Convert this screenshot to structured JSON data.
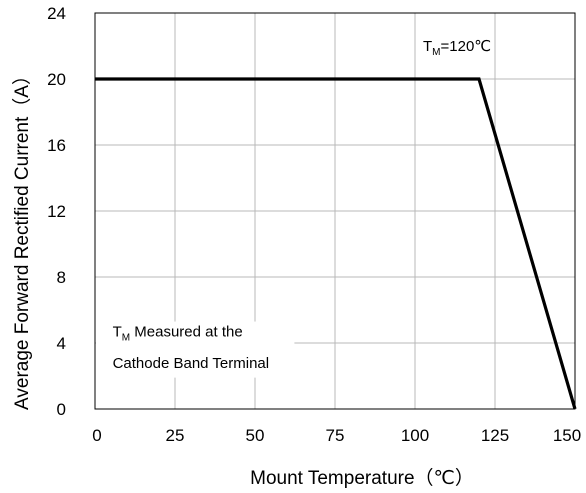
{
  "chart_data": {
    "type": "line",
    "xlabel": "Mount Temperature（℃）",
    "ylabel": "Average Forward Rectified Current（A）",
    "xlim": [
      0,
      150
    ],
    "ylim": [
      0,
      24
    ],
    "x_ticks": [
      0,
      25,
      50,
      75,
      100,
      125,
      150
    ],
    "y_ticks": [
      0,
      4,
      8,
      12,
      16,
      20,
      24
    ],
    "x_tick_labels": [
      "0",
      "25",
      "50",
      "75",
      "100",
      "125",
      "150"
    ],
    "y_tick_labels": [
      "0",
      "4",
      "8",
      "12",
      "16",
      "20",
      "24"
    ],
    "grid": true,
    "series": [
      {
        "x": [
          0,
          120,
          150
        ],
        "y": [
          20,
          20,
          0
        ],
        "color": "#000000"
      }
    ],
    "annotations": [
      {
        "id": "knee",
        "parts": [
          {
            "text": "T",
            "sub": false
          },
          {
            "text": "M",
            "sub": true
          },
          {
            "text": "=120℃",
            "sub": false
          }
        ]
      },
      {
        "id": "note",
        "lines": [
          [
            {
              "text": "T",
              "sub": false
            },
            {
              "text": "M",
              "sub": true
            },
            {
              "text": " Measured at the",
              "sub": false
            }
          ],
          [
            {
              "text": "Cathode Band Terminal",
              "sub": false
            }
          ]
        ]
      }
    ]
  }
}
